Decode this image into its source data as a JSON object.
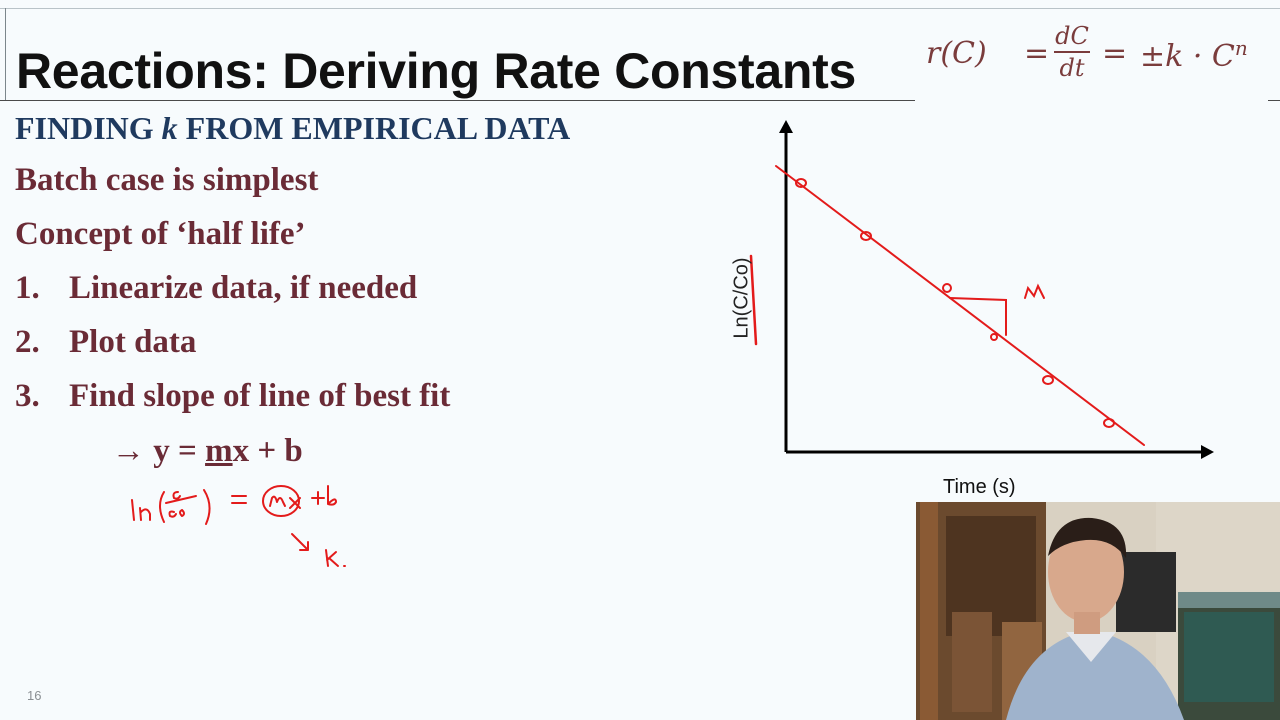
{
  "title": "Reactions: Deriving Rate Constants",
  "formula": {
    "lhs": "r(C)",
    "eq": "=",
    "frac_num": "dC",
    "frac_den": "dt",
    "rhs_sign": "±k · C",
    "rhs_exp": "n"
  },
  "subheading": {
    "prefix": "FINDING ",
    "italic": "k",
    "suffix": " FROM EMPIRICAL DATA"
  },
  "bullets": [
    "Batch case is simplest",
    "Concept of ‘half life’"
  ],
  "steps": [
    {
      "num": "1.",
      "text": "Linearize data, if needed"
    },
    {
      "num": "2.",
      "text": "Plot data"
    },
    {
      "num": "3.",
      "text": "Find slope of line of best fit"
    }
  ],
  "equation": {
    "arrow": "→",
    "pre": " y = ",
    "underlined": "m",
    "post": "x + b"
  },
  "handwritten_note": "ln(C/Co) = (m)x + b → k",
  "graph": {
    "ylabel": "Ln(C/Co)",
    "xlabel": "Time (s)",
    "slope_label": "m",
    "annotation_color": "#e31b1b"
  },
  "page_number": "16",
  "colors": {
    "title": "#111111",
    "subheading": "#1f3a5f",
    "body": "#6a2b36",
    "formula": "#7a3c3c",
    "ink": "#e31b1b"
  }
}
